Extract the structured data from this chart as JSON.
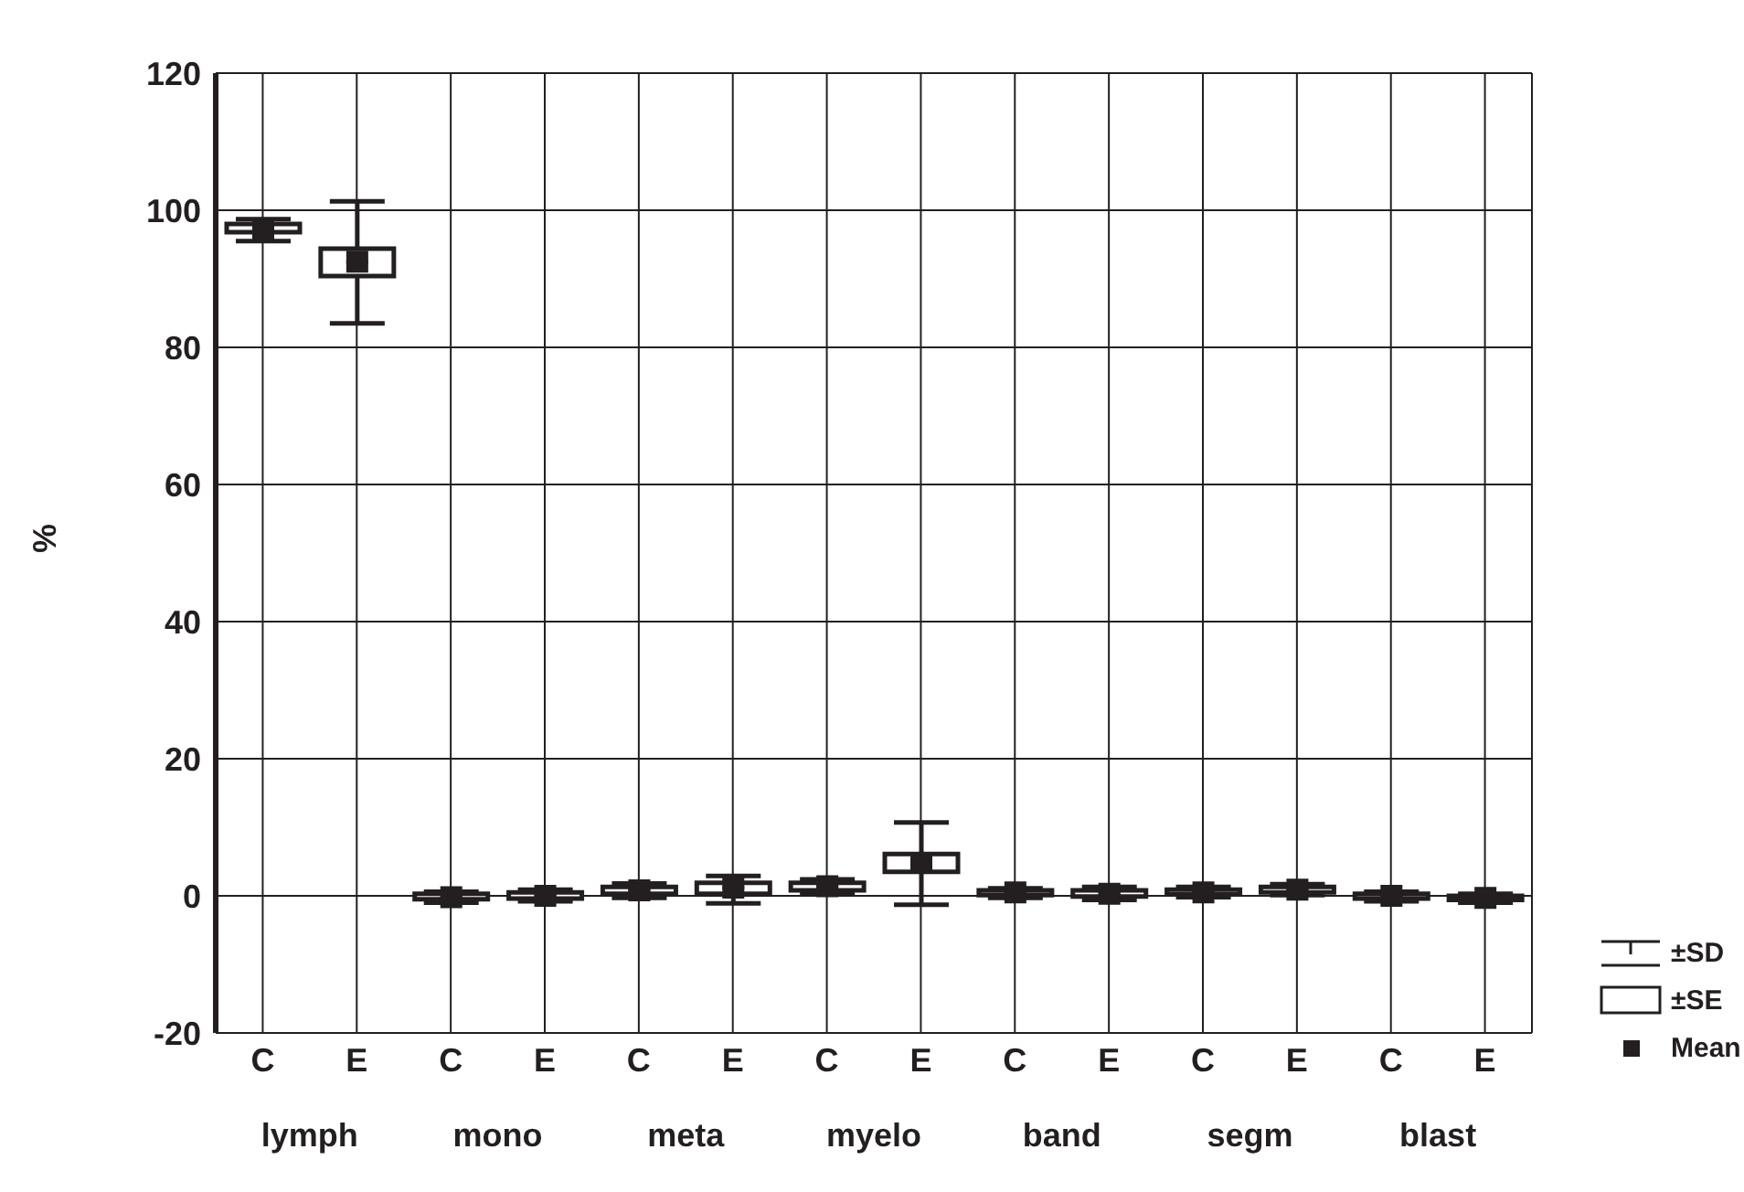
{
  "chart_data": {
    "type": "box",
    "ylabel": "%",
    "categories": [
      "C",
      "E",
      "C",
      "E",
      "C",
      "E",
      "C",
      "E",
      "C",
      "E",
      "C",
      "E",
      "C",
      "E"
    ],
    "boxes": [
      {
        "low": 95.5,
        "q1": 96.8,
        "median": 97.3,
        "q3": 98,
        "high": 98.7,
        "mean": 97.3
      },
      {
        "low": 83.5,
        "q1": 90.4,
        "median": 92.5,
        "q3": 94.4,
        "high": 101.3,
        "mean": 92.5
      },
      {
        "low": -1,
        "q1": -0.5,
        "median": -0.2,
        "q3": 0.3,
        "high": 0.6,
        "mean": -0.2
      },
      {
        "low": -0.8,
        "q1": -0.4,
        "median": 0,
        "q3": 0.5,
        "high": 0.9,
        "mean": 0
      },
      {
        "low": -0.3,
        "q1": 0.3,
        "median": 0.8,
        "q3": 1.3,
        "high": 1.8,
        "mean": 0.8
      },
      {
        "low": -1.1,
        "q1": 0.3,
        "median": 1.2,
        "q3": 1.9,
        "high": 2.9,
        "mean": 1.2
      },
      {
        "low": 0.3,
        "q1": 0.8,
        "median": 1.4,
        "q3": 1.9,
        "high": 2.4,
        "mean": 1.4
      },
      {
        "low": -1.3,
        "q1": 3.5,
        "median": 4.8,
        "q3": 6.1,
        "high": 10.7,
        "mean": 4.8
      },
      {
        "low": -0.3,
        "q1": 0.1,
        "median": 0.5,
        "q3": 0.8,
        "high": 1.1,
        "mean": 0.5
      },
      {
        "low": -0.6,
        "q1": -0.1,
        "median": 0.3,
        "q3": 0.8,
        "high": 1.3,
        "mean": 0.3
      },
      {
        "low": -0.2,
        "q1": 0.2,
        "median": 0.5,
        "q3": 0.9,
        "high": 1.3,
        "mean": 0.5
      },
      {
        "low": 0.1,
        "q1": 0.5,
        "median": 0.9,
        "q3": 1.3,
        "high": 1.7,
        "mean": 0.9
      },
      {
        "low": -0.8,
        "q1": -0.4,
        "median": 0,
        "q3": 0.3,
        "high": 0.6,
        "mean": 0
      },
      {
        "low": -1,
        "q1": -0.6,
        "median": -0.3,
        "q3": 0,
        "high": 0.3,
        "mean": -0.3
      }
    ],
    "ylim": [
      -20,
      120
    ],
    "yticks": [
      -20,
      0,
      20,
      40,
      60,
      80,
      100,
      120
    ],
    "grid": true,
    "annotations": [
      "lymph",
      "mono",
      "meta",
      "myelo",
      "band",
      "segm",
      "blast",
      "±SD",
      "±SE",
      "Mean"
    ]
  }
}
